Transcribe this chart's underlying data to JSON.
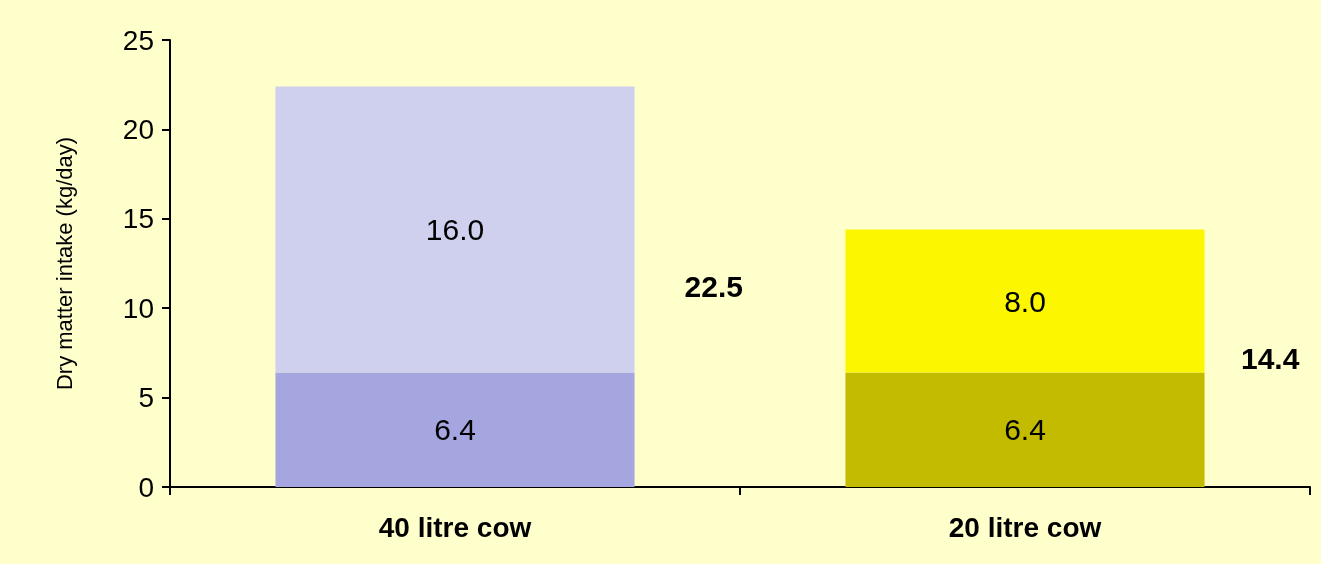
{
  "chart_data": {
    "type": "bar",
    "stacked": true,
    "ylabel": "Dry matter intake (kg/day)",
    "categories": [
      "40 litre cow",
      "20 litre cow"
    ],
    "series": [
      {
        "colors": [
          "#a5a5e0",
          "#c3bb00"
        ],
        "values": [
          6.4,
          6.4
        ],
        "value_labels": [
          "6.4",
          "6.4"
        ]
      },
      {
        "colors": [
          "#cfd0ee",
          "#fcf700"
        ],
        "values": [
          16.0,
          8.0
        ],
        "value_labels": [
          "16.0",
          "8.0"
        ]
      }
    ],
    "totals": [
      "22.5",
      "14.4"
    ],
    "ylim": [
      0,
      25
    ],
    "yticks": [
      0,
      5,
      10,
      15,
      20,
      25
    ],
    "grid": false
  }
}
